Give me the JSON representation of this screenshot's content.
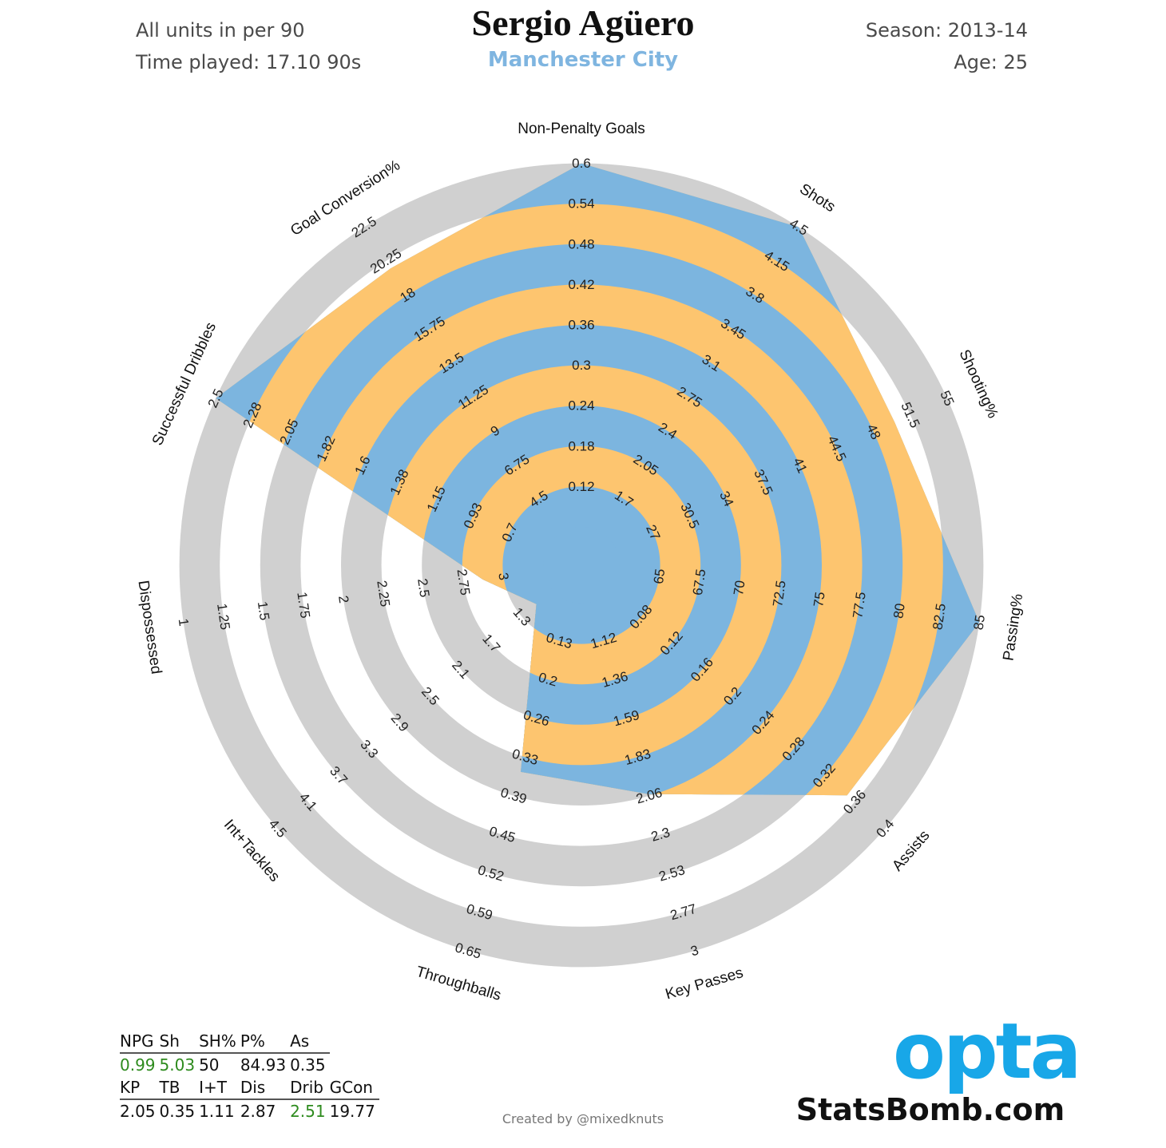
{
  "header": {
    "title": "Sergio Agüero",
    "team": "Manchester City",
    "units_note": "All units in per 90",
    "time_played": "Time played: 17.10 90s",
    "season": "Season: 2013-14",
    "age": "Age: 25"
  },
  "colors": {
    "band_orange": "#FDC56F",
    "band_blue": "#7CB5DF",
    "ring_grey": "#D0D0D0",
    "team_blue": "#7FB5E0",
    "good_green": "#2E8B1E",
    "opta_blue": "#18A7E8"
  },
  "chart_data": {
    "type": "radar",
    "title": "Sergio Agüero",
    "rings": 10,
    "axes": [
      {
        "name": "Non-Penalty Goals",
        "ticks": [
          "0.12",
          "0.18",
          "0.24",
          "0.3",
          "0.36",
          "0.42",
          "0.48",
          "0.54",
          "0.6"
        ],
        "value": 0.6
      },
      {
        "name": "Shots",
        "ticks": [
          "1.7",
          "2.05",
          "2.4",
          "2.75",
          "3.1",
          "3.45",
          "3.8",
          "4.15",
          "4.5"
        ],
        "value": 4.5
      },
      {
        "name": "Shooting%",
        "ticks": [
          "27",
          "30.5",
          "34",
          "37.5",
          "41",
          "44.5",
          "48",
          "51.5",
          "55"
        ],
        "value": 50
      },
      {
        "name": "Passing%",
        "ticks": [
          "65",
          "67.5",
          "70",
          "72.5",
          "75",
          "77.5",
          "80",
          "82.5",
          "85"
        ],
        "value": 85
      },
      {
        "name": "Assists",
        "ticks": [
          "0.08",
          "0.12",
          "0.16",
          "0.2",
          "0.24",
          "0.28",
          "0.32",
          "0.36",
          "0.4"
        ],
        "value": 0.35
      },
      {
        "name": "Key Passes",
        "ticks": [
          "1.12",
          "1.36",
          "1.59",
          "1.83",
          "2.06",
          "2.3",
          "2.53",
          "2.77",
          "3"
        ],
        "value": 2.05
      },
      {
        "name": "Throughballs",
        "ticks": [
          "0.13",
          "0.2",
          "0.26",
          "0.33",
          "0.39",
          "0.45",
          "0.52",
          "0.59",
          "0.65"
        ],
        "value": 0.35
      },
      {
        "name": "Int+Tackles",
        "ticks": [
          "1.3",
          "1.7",
          "2.1",
          "2.5",
          "2.9",
          "3.3",
          "3.7",
          "4.1",
          "4.5"
        ],
        "value": 1.11
      },
      {
        "name": "Dispossessed",
        "ticks": [
          "3",
          "2.75",
          "2.5",
          "2.25",
          "2",
          "1.75",
          "1.5",
          "1.25",
          "1"
        ],
        "value": 2.87
      },
      {
        "name": "Successful Dribbles",
        "ticks": [
          "0.7",
          "0.93",
          "1.15",
          "1.38",
          "1.6",
          "1.82",
          "2.05",
          "2.28",
          "2.5"
        ],
        "value": 2.51
      },
      {
        "name": "Goal Conversion%",
        "ticks": [
          "4.5",
          "6.75",
          "9",
          "11.25",
          "13.5",
          "15.75",
          "18",
          "20.25",
          "22.5"
        ],
        "value": 19.77
      }
    ]
  },
  "stats_table": {
    "row1_headers": [
      "NPG",
      "Sh",
      "SH%",
      "P%",
      "As"
    ],
    "row1_values": [
      "0.99",
      "5.03",
      "50",
      "84.93",
      "0.35"
    ],
    "row1_highlight": [
      true,
      true,
      false,
      false,
      false
    ],
    "row2_headers": [
      "KP",
      "TB",
      "I+T",
      "Dis",
      "Drib",
      "GCon"
    ],
    "row2_values": [
      "2.05",
      "0.35",
      "1.11",
      "2.87",
      "2.51",
      "19.77"
    ],
    "row2_highlight": [
      false,
      false,
      false,
      false,
      true,
      false
    ]
  },
  "branding": {
    "logo_text": "opta",
    "site": "StatsBomb.com",
    "credit": "Created by @mixedknuts"
  }
}
